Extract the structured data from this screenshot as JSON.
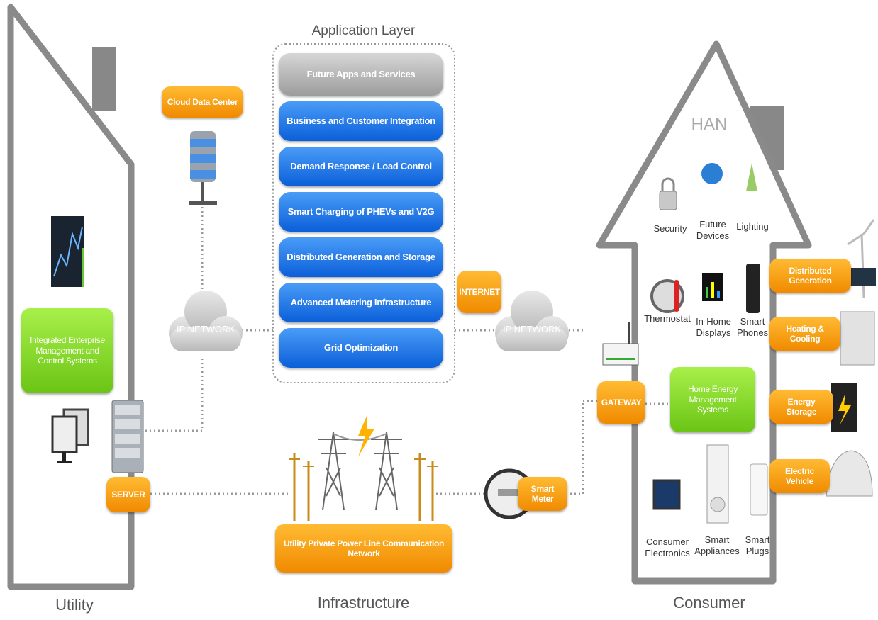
{
  "application_layer": {
    "title": "Application Layer",
    "items": [
      "Future Apps and Services",
      "Business and Customer Integration",
      "Demand Response / Load Control",
      "Smart Charging of PHEVs and V2G",
      "Distributed Generation and Storage",
      "Advanced Metering Infrastructure",
      "Grid Optimization"
    ]
  },
  "utility": {
    "label": "Utility",
    "enterprise": "Integrated Enterprise Management and Control Systems",
    "server": "SERVER"
  },
  "cloud_data_center": "Cloud Data Center",
  "ip_networks": [
    "IP NETWORK",
    "IP NETWORK"
  ],
  "internet": "INTERNET",
  "infrastructure": {
    "label": "Infrastructure",
    "network": "Utility Private Power Line Communication Network",
    "smart_meter": "Smart Meter"
  },
  "consumer": {
    "label": "Consumer",
    "han": "HAN",
    "gateway": "GATEWAY",
    "hems": "Home Energy Management Systems",
    "devices": [
      "Security",
      "Future Devices",
      "Lighting",
      "Thermostat",
      "In-Home Displays",
      "Smart Phones",
      "Consumer Electronics",
      "Smart Appliances",
      "Smart Plugs"
    ],
    "services": [
      "Distributed Generation",
      "Heating & Cooling",
      "Energy Storage",
      "Electric Vehicle"
    ]
  }
}
